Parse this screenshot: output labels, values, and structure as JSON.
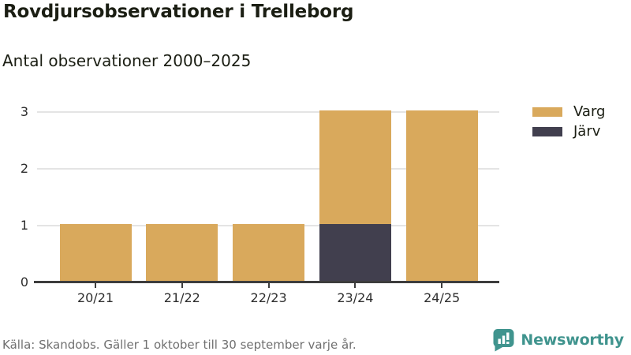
{
  "title": "Rovdjursobservationer i Trelleborg",
  "subtitle": "Antal observationer 2000–2025",
  "footer": {
    "source": "Källa: Skandobs. Gäller 1 oktober till 30 september varje år.",
    "brand": "Newsworthy"
  },
  "colors": {
    "varg": "#d9a95c",
    "jarv": "#413f4e",
    "brand_teal": "#40948e",
    "gridline": "#e4e4e4",
    "axis": "#3d3d3d",
    "text_dark": "#1b1e13",
    "text_muted": "#707070"
  },
  "chart_data": {
    "type": "bar",
    "stacked": true,
    "title": "Rovdjursobservationer i Trelleborg",
    "subtitle": "Antal observationer 2000–2025",
    "categories": [
      "20/21",
      "21/22",
      "22/23",
      "23/24",
      "24/25"
    ],
    "series": [
      {
        "name": "Varg",
        "color": "#d9a95c",
        "values": [
          1,
          1,
          1,
          2,
          3
        ]
      },
      {
        "name": "Järv",
        "color": "#413f4e",
        "values": [
          0,
          0,
          0,
          1,
          0
        ]
      }
    ],
    "stack_bottom_to_top": [
      "Järv",
      "Varg"
    ],
    "totals": [
      1,
      1,
      1,
      3,
      3
    ],
    "xlabel": "",
    "ylabel": "",
    "ylim": [
      0,
      3
    ],
    "yticks": [
      0,
      1,
      2,
      3
    ],
    "grid": true,
    "legend_position": "top-right",
    "source": "Källa: Skandobs. Gäller 1 oktober till 30 september varje år."
  }
}
